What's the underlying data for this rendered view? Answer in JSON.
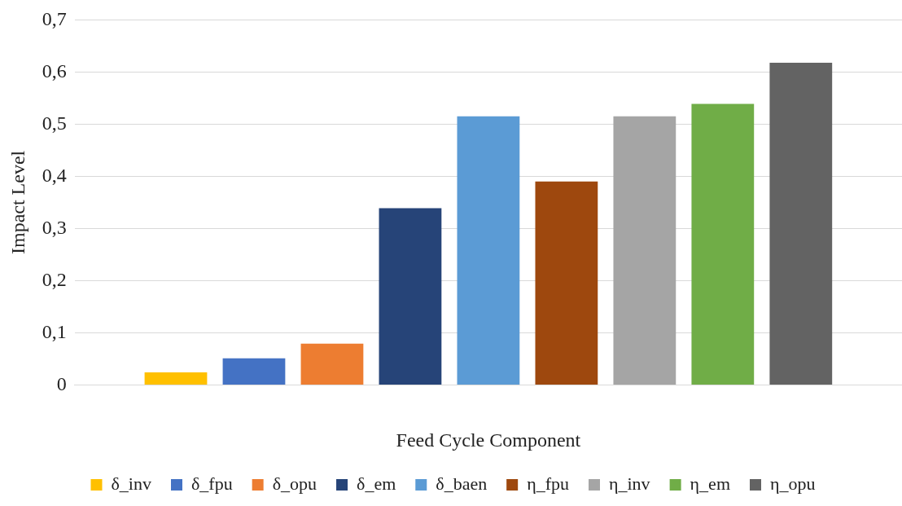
{
  "chart_data": {
    "type": "bar",
    "xlabel": "Feed Cycle Component",
    "ylabel": "Impact Level",
    "categories": [
      null
    ],
    "series": [
      {
        "name": "δ_inv",
        "color": "#ffc000",
        "values": [
          0.024
        ]
      },
      {
        "name": "δ_fpu",
        "color": "#4472c4",
        "values": [
          0.051
        ]
      },
      {
        "name": "δ_opu",
        "color": "#ed7d31",
        "values": [
          0.079
        ]
      },
      {
        "name": "δ_em",
        "color": "#264478",
        "values": [
          0.339
        ]
      },
      {
        "name": "δ_baen",
        "color": "#5b9bd5",
        "values": [
          0.515
        ]
      },
      {
        "name": "η_fpu",
        "color": "#9e480e",
        "values": [
          0.39
        ]
      },
      {
        "name": "η_inv",
        "color": "#a5a5a5",
        "values": [
          0.515
        ]
      },
      {
        "name": "η_em",
        "color": "#70ad47",
        "values": [
          0.539
        ]
      },
      {
        "name": "η_opu",
        "color": "#636363",
        "values": [
          0.618
        ]
      }
    ],
    "ylim": [
      0,
      0.7
    ],
    "yticks": [
      0,
      {
        "value": 0.1,
        "label": "0,1"
      },
      {
        "value": 0.2,
        "label": "0,2"
      },
      {
        "value": 0.3,
        "label": "0,3"
      },
      {
        "value": 0.4,
        "label": "0,4"
      },
      {
        "value": 0.5,
        "label": "0,5"
      },
      {
        "value": 0.6,
        "label": "0,6"
      },
      {
        "value": 0.7,
        "label": "0,7"
      }
    ],
    "grid": "y",
    "legend": "bottom"
  }
}
